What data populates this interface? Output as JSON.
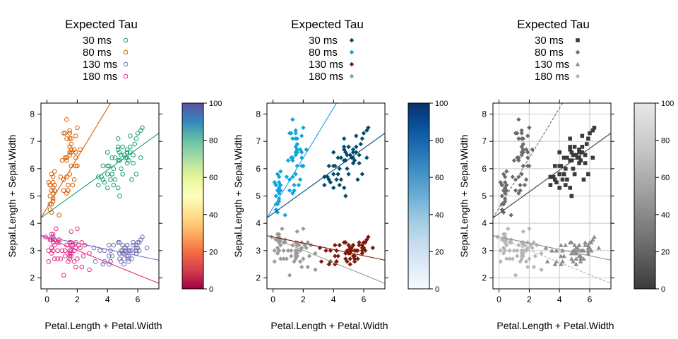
{
  "chart_data": [
    {
      "type": "scatter",
      "panel": "left",
      "legend_title": "Expected Tau",
      "legend_placement": "top",
      "xlabel": "Petal.Length + Petal.Width",
      "ylabel": "Sepal.Length + Sepal.Width",
      "xlim": [
        -0.4,
        7.4
      ],
      "ylim": [
        1.6,
        8.4
      ],
      "xticks": [
        "0",
        "2",
        "4",
        "6"
      ],
      "yticks": [
        "2",
        "3",
        "4",
        "5",
        "6",
        "7",
        "8"
      ],
      "grid": false,
      "colorbar": {
        "range": [
          0,
          100
        ],
        "ticks": [
          "0",
          "20",
          "40",
          "60",
          "80",
          "100"
        ],
        "colors": [
          "#9e0142",
          "#d53e4f",
          "#f46d43",
          "#fdae61",
          "#fee08b",
          "#ffffbf",
          "#e6f598",
          "#abdda4",
          "#66c2a5",
          "#3288bd",
          "#5e4fa2"
        ]
      },
      "series": [
        {
          "name": "30 ms",
          "color": "#1b9e77",
          "marker": "circle-open",
          "line": {
            "x": [
              -0.4,
              7.4
            ],
            "y": [
              4.2,
              7.3
            ]
          }
        },
        {
          "name": "80 ms",
          "color": "#d95f02",
          "marker": "circle-open",
          "line": {
            "x": [
              -0.4,
              4.2
            ],
            "y": [
              4.2,
              8.4
            ]
          }
        },
        {
          "name": "130 ms",
          "color": "#7570b3",
          "marker": "circle-open",
          "line": {
            "x": [
              -0.4,
              7.4
            ],
            "y": [
              3.55,
              2.65
            ]
          }
        },
        {
          "name": "180 ms",
          "color": "#e7298a",
          "marker": "circle-open",
          "line": {
            "x": [
              -0.4,
              7.4
            ],
            "y": [
              3.55,
              1.8
            ]
          }
        }
      ]
    },
    {
      "type": "scatter",
      "panel": "middle",
      "legend_title": "Expected Tau",
      "legend_placement": "top",
      "xlabel": "Petal.Length + Petal.Width",
      "ylabel": "Sepal.Length + Sepal.Width",
      "xlim": [
        -0.4,
        7.4
      ],
      "ylim": [
        1.6,
        8.4
      ],
      "xticks": [
        "0",
        "2",
        "4",
        "6"
      ],
      "yticks": [
        "2",
        "3",
        "4",
        "5",
        "6",
        "7",
        "8"
      ],
      "grid": false,
      "colorbar": {
        "range": [
          0,
          100
        ],
        "ticks": [
          "0",
          "20",
          "40",
          "60",
          "80",
          "100"
        ],
        "colors": [
          "#f7fbff",
          "#deebf7",
          "#c6dbef",
          "#9ecae1",
          "#6baed6",
          "#4292c6",
          "#2171b5",
          "#08519c",
          "#08306b"
        ]
      },
      "series": [
        {
          "name": "30 ms",
          "color": "#004c6d",
          "marker": "diamond-filled",
          "line": {
            "x": [
              -0.4,
              7.4
            ],
            "y": [
              4.2,
              7.3
            ]
          }
        },
        {
          "name": "80 ms",
          "color": "#0ea5de",
          "marker": "diamond-filled",
          "line": {
            "x": [
              -0.4,
              4.2
            ],
            "y": [
              4.2,
              8.4
            ]
          }
        },
        {
          "name": "130 ms",
          "color": "#7d1a0b",
          "marker": "diamond-filled",
          "line": {
            "x": [
              -0.4,
              7.4
            ],
            "y": [
              3.55,
              2.65
            ]
          }
        },
        {
          "name": "180 ms",
          "color": "#9a9a9a",
          "marker": "diamond-filled",
          "line": {
            "x": [
              -0.4,
              7.4
            ],
            "y": [
              3.55,
              1.8
            ]
          }
        }
      ]
    },
    {
      "type": "scatter",
      "panel": "right",
      "legend_title": "Expected Tau",
      "legend_placement": "top",
      "xlabel": "Petal.Length + Petal.Width",
      "ylabel": "Sepal.Length + Sepal.Width",
      "xlim": [
        -0.4,
        7.4
      ],
      "ylim": [
        1.6,
        8.4
      ],
      "xticks": [
        "0",
        "2",
        "4",
        "6"
      ],
      "yticks": [
        "2",
        "3",
        "4",
        "5",
        "6",
        "7",
        "8"
      ],
      "grid": true,
      "colorbar": {
        "range": [
          0,
          100
        ],
        "ticks": [
          "0",
          "20",
          "40",
          "60",
          "80",
          "100"
        ],
        "colors": [
          "#3b3b3b",
          "#6e6e6e",
          "#9c9c9c",
          "#c6c6c6",
          "#e8e8e8"
        ]
      },
      "series": [
        {
          "name": "30 ms",
          "color": "#3a3a3a",
          "marker": "square-filled",
          "line": {
            "x": [
              -0.4,
              7.4
            ],
            "y": [
              4.2,
              7.3
            ]
          }
        },
        {
          "name": "80 ms",
          "color": "#6b6b6b",
          "marker": "diamond-filled",
          "line": {
            "x": [
              -0.4,
              4.2
            ],
            "y": [
              4.2,
              8.4
            ]
          }
        },
        {
          "name": "130 ms",
          "color": "#8c8c8c",
          "marker": "triangle-filled",
          "line": {
            "x": [
              -0.4,
              7.4
            ],
            "y": [
              3.55,
              2.65
            ]
          }
        },
        {
          "name": "180 ms",
          "color": "#b5b5b5",
          "marker": "diamond-filled",
          "line": {
            "x": [
              -0.4,
              7.4
            ],
            "y": [
              3.55,
              1.8
            ]
          }
        }
      ]
    }
  ]
}
